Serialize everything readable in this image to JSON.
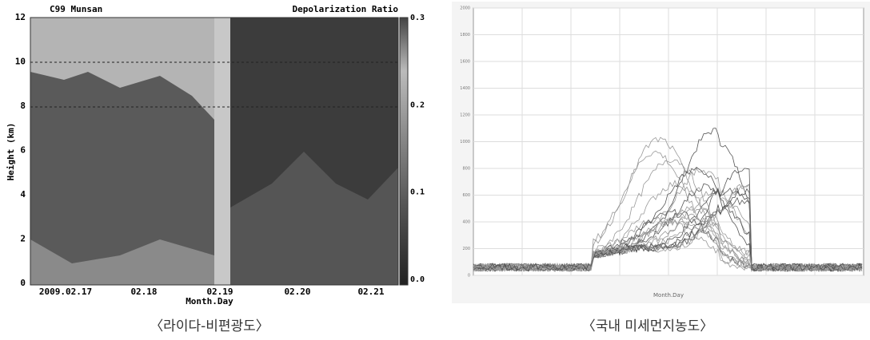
{
  "figures": [
    {
      "title": "C99 Munsan",
      "colorbar_title": "Depolarization Ratio",
      "y_label": "Height (km)",
      "x_label": "Month.Day",
      "y_ticks": [
        "0",
        "2",
        "4",
        "6",
        "8",
        "10",
        "12"
      ],
      "x_ticks": [
        "2009.02.17",
        "02.18",
        "02.19",
        "02.20",
        "02.21"
      ],
      "colorbar_ticks": [
        "0.0",
        "0.1",
        "0.2",
        "0.3"
      ],
      "caption": "〈라이다-비편광도〉"
    },
    {
      "x_label": "Month.Day",
      "y_ticks": [
        "0",
        "200",
        "400",
        "600",
        "800",
        "1000",
        "1200",
        "1400",
        "1600",
        "1800",
        "2000"
      ],
      "caption": "〈국내 미세먼지농도〉"
    }
  ]
}
